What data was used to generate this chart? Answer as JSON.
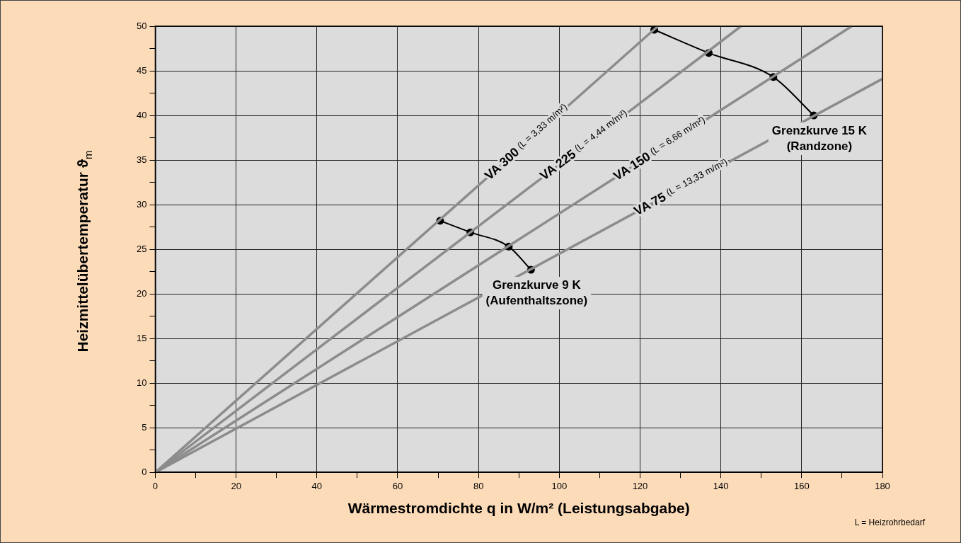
{
  "chart_data": {
    "type": "line",
    "xlabel": "Wärmestromdichte q in W/m² (Leistungsabgabe)",
    "ylabel": "Heizmittelübertemperatur ϑ$_{m}$",
    "xlim": [
      0,
      180
    ],
    "ylim": [
      0,
      50
    ],
    "xticks": [
      0,
      {
        "value": 10,
        "label": null
      },
      20,
      {
        "value": 30,
        "label": null
      },
      40,
      {
        "value": 50,
        "label": null
      },
      60,
      {
        "value": 70,
        "label": null
      },
      80,
      {
        "value": 90,
        "label": null
      },
      100,
      {
        "value": 110,
        "label": null
      },
      120,
      {
        "value": 130,
        "label": null
      },
      140,
      {
        "value": 150,
        "label": null
      },
      160,
      {
        "value": 170,
        "label": null
      },
      180
    ],
    "yticks": [
      0,
      {
        "value": 2.5,
        "label": null
      },
      5,
      {
        "value": 7.5,
        "label": null
      },
      10,
      {
        "value": 12.5,
        "label": null
      },
      15,
      {
        "value": 17.5,
        "label": null
      },
      20,
      {
        "value": 22.5,
        "label": null
      },
      25,
      {
        "value": 27.5,
        "label": null
      },
      30,
      {
        "value": 32.5,
        "label": null
      },
      35,
      {
        "value": 37.5,
        "label": null
      },
      40,
      {
        "value": 42.5,
        "label": null
      },
      45,
      {
        "value": 47.5,
        "label": null
      },
      50
    ],
    "grid": "x20y5",
    "series": [
      {
        "name": "VA 300 (L = 3,33 m/m²)",
        "color": "#8c8c8c",
        "marker": "none",
        "x": [
          0,
          124.4
        ],
        "values": [
          0,
          50
        ]
      },
      {
        "name": "VA 225 (L = 4,44 m/m²)",
        "color": "#8c8c8c",
        "marker": "none",
        "x": [
          0,
          145
        ],
        "values": [
          0,
          50
        ]
      },
      {
        "name": "VA 150 (L = 6,66 m/m²)",
        "color": "#8c8c8c",
        "marker": "none",
        "x": [
          0,
          172.4
        ],
        "values": [
          0,
          50
        ]
      },
      {
        "name": "VA 75 (L = 13,33 m/m²)",
        "color": "#8c8c8c",
        "marker": "none",
        "x": [
          0,
          180
        ],
        "values": [
          0,
          44.1
        ]
      },
      {
        "name": "Grenzkurve 9 K\n(Aufenthaltszone)",
        "color": "#000000",
        "marker": "circle",
        "x": [
          70.5,
          78,
          87.5,
          93
        ],
        "values": [
          28.2,
          26.9,
          25.3,
          22.7
        ]
      },
      {
        "name": "Grenzkurve 15 K\n(Randzone)",
        "color": "#000000",
        "marker": "circle",
        "x": [
          123.5,
          137,
          153,
          163
        ],
        "values": [
          49.6,
          47,
          44.3,
          40
        ]
      }
    ],
    "legend": false,
    "annotations": [
      "L = Heizrohrbedarf"
    ]
  }
}
